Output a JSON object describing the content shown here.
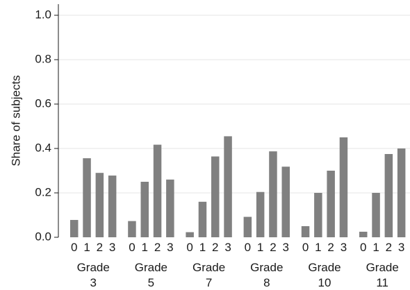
{
  "chart_data": {
    "type": "bar",
    "title": "",
    "xlabel": "",
    "ylabel": "Share of subjects",
    "ylim": [
      0,
      1.0
    ],
    "yticks": [
      "0.0",
      "0.2",
      "0.4",
      "0.6",
      "0.8",
      "1.0"
    ],
    "grid": true,
    "bar_color": "#808080",
    "categories": [
      "0",
      "1",
      "2",
      "3"
    ],
    "groups": [
      {
        "label_line1": "Grade",
        "label_line2": "3",
        "values": [
          0.078,
          0.356,
          0.29,
          0.278
        ]
      },
      {
        "label_line1": "Grade",
        "label_line2": "5",
        "values": [
          0.073,
          0.25,
          0.417,
          0.26
        ]
      },
      {
        "label_line1": "Grade",
        "label_line2": "7",
        "values": [
          0.023,
          0.16,
          0.364,
          0.455
        ]
      },
      {
        "label_line1": "Grade",
        "label_line2": "8",
        "values": [
          0.092,
          0.204,
          0.387,
          0.318
        ]
      },
      {
        "label_line1": "Grade",
        "label_line2": "10",
        "values": [
          0.05,
          0.2,
          0.3,
          0.45
        ]
      },
      {
        "label_line1": "Grade",
        "label_line2": "11",
        "values": [
          0.025,
          0.2,
          0.375,
          0.4
        ]
      }
    ]
  }
}
